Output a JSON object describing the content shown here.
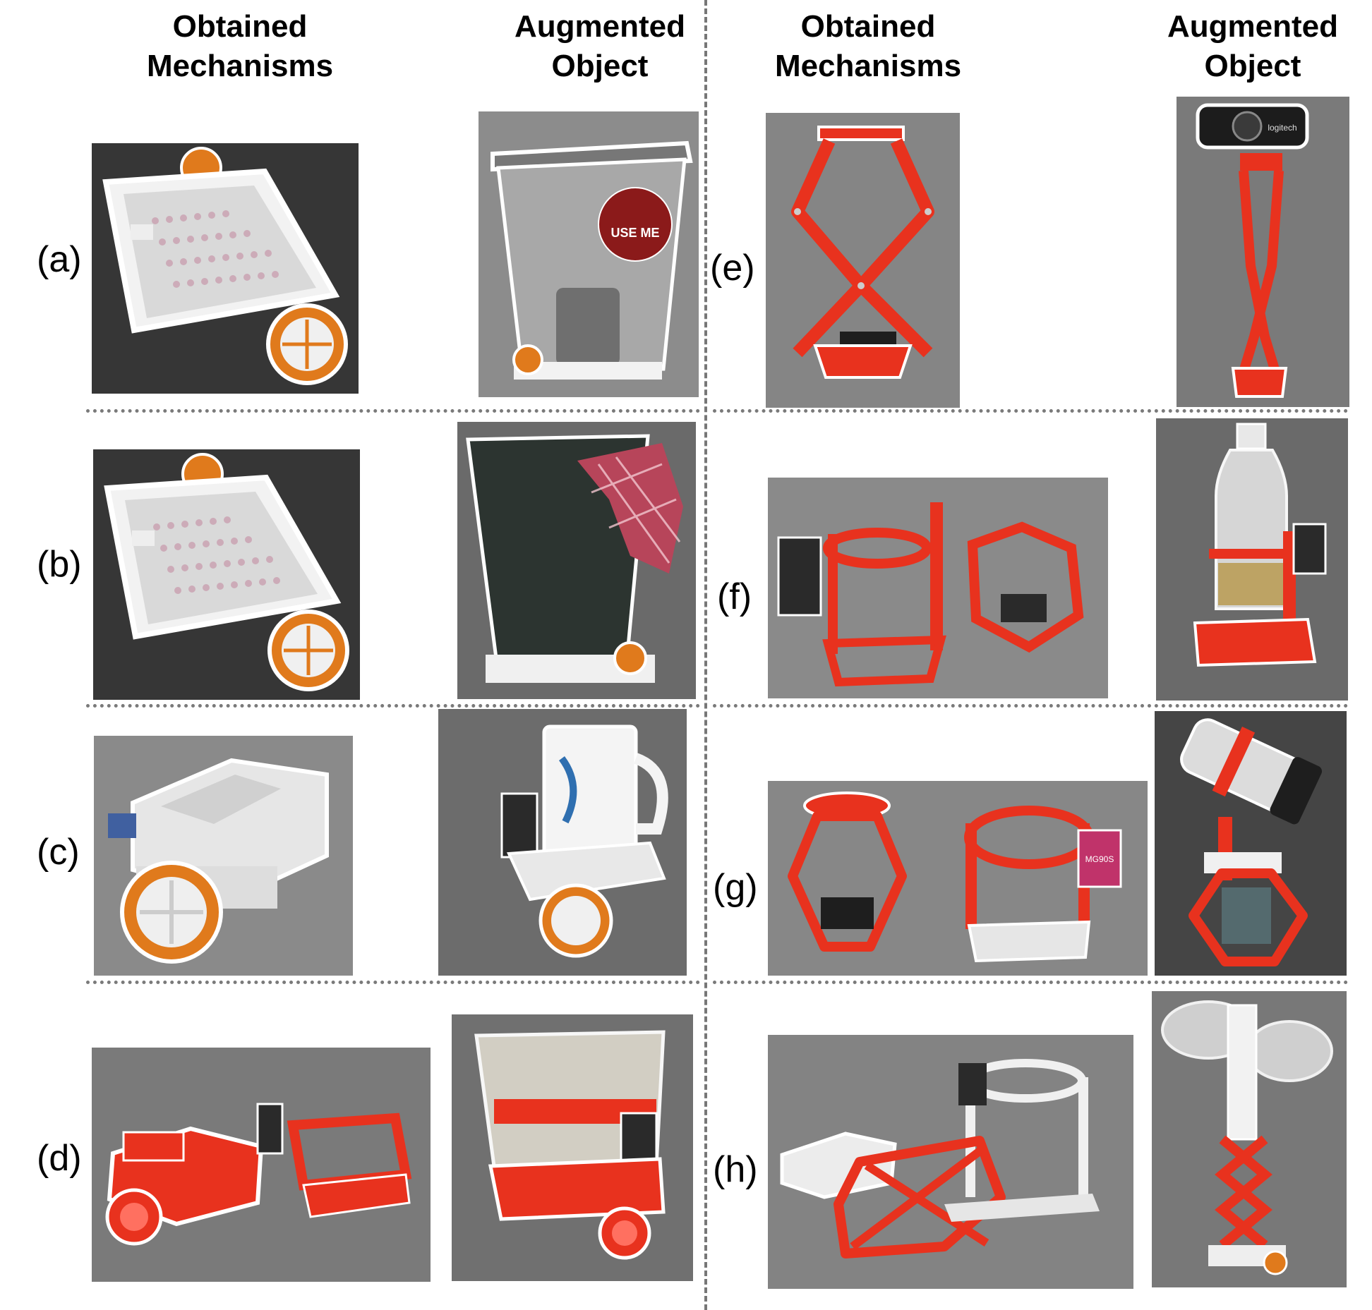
{
  "headers": {
    "left_mech": {
      "line1": "Obtained",
      "line2": "Mechanisms"
    },
    "left_aug": {
      "line1": "Augmented",
      "line2": "Object"
    },
    "right_mech": {
      "line1": "Obtained",
      "line2": "Mechanisms"
    },
    "right_aug": {
      "line1": "Augmented",
      "line2": "Object"
    }
  },
  "row_labels": [
    "(a)",
    "(b)",
    "(c)",
    "(d)",
    "(e)",
    "(f)",
    "(g)",
    "(h)"
  ],
  "photo_text": {
    "trash_sticker": "USE ME",
    "webcam_brand": "logitech",
    "servo_label": "MG90S"
  },
  "colors": {
    "mechanism_red": "#e8321e",
    "wheel_orange": "#e07a1c",
    "white_plastic": "#eeeeee",
    "backdrop_gray": "#7f7f7f",
    "divider": "#777777"
  }
}
